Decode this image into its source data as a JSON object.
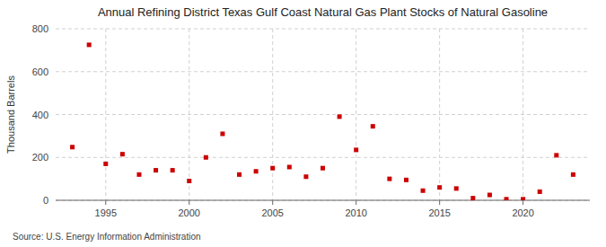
{
  "chart_data": {
    "type": "scatter",
    "title": "Annual Refining District Texas Gulf Coast Natural Gas Plant Stocks of Natural Gasoline",
    "ylabel": "Thousand Barrels",
    "source": "Source: U.S. Energy Information Administration",
    "x": [
      1993,
      1994,
      1995,
      1996,
      1997,
      1998,
      1999,
      2000,
      2001,
      2002,
      2003,
      2004,
      2005,
      2006,
      2007,
      2008,
      2009,
      2010,
      2011,
      2012,
      2013,
      2014,
      2015,
      2016,
      2017,
      2018,
      2019,
      2020,
      2021,
      2022,
      2023
    ],
    "values": [
      248,
      725,
      170,
      215,
      120,
      140,
      140,
      90,
      200,
      310,
      120,
      135,
      150,
      155,
      110,
      150,
      390,
      235,
      345,
      100,
      95,
      45,
      60,
      55,
      10,
      25,
      5,
      5,
      40,
      210,
      120
    ],
    "color": "#cc0000",
    "marker": "square",
    "xlim": [
      1992,
      2024
    ],
    "ylim": [
      0,
      800
    ],
    "xticks": [
      1995,
      2000,
      2005,
      2010,
      2015,
      2020
    ],
    "yticks": [
      0,
      200,
      400,
      600,
      800
    ],
    "grid": true
  }
}
